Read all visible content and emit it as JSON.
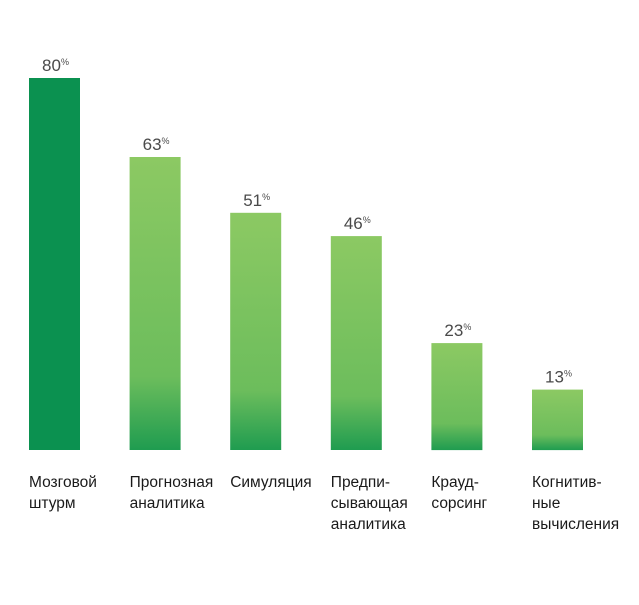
{
  "chart_data": {
    "type": "bar",
    "title": "",
    "xlabel": "",
    "ylabel": "",
    "ylim": [
      0,
      80
    ],
    "unit": "%",
    "grid": false,
    "categories": [
      [
        "Мозговой",
        "штурм"
      ],
      [
        "Прогнозная",
        "аналитика"
      ],
      [
        "Симуляция"
      ],
      [
        "Предпи-",
        "сывающая",
        "аналитика"
      ],
      [
        "Крауд-",
        "сорсинг"
      ],
      [
        "Когнитив-",
        "ные",
        "вычисления"
      ]
    ],
    "values": [
      80,
      63,
      51,
      46,
      23,
      13
    ],
    "colors": {
      "first_bar": "#0b9150",
      "gradient_top": "#8cc963",
      "gradient_bottom": "#1f9c50"
    }
  }
}
